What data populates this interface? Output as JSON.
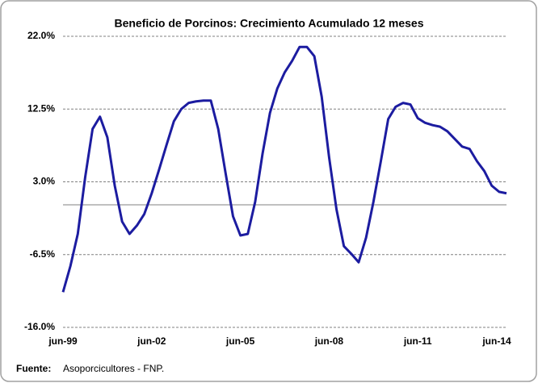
{
  "chart_data": {
    "type": "line",
    "title": "Beneficio de Porcinos: Crecimiento Acumulado 12 meses",
    "source_label": "Fuente:",
    "source": "Asoporcicultores - FNP.",
    "categories": [
      "jun-99",
      null,
      null,
      null,
      null,
      null,
      null,
      null,
      null,
      null,
      null,
      null,
      "jun-02",
      null,
      null,
      null,
      null,
      null,
      null,
      null,
      null,
      null,
      null,
      null,
      "jun-05",
      null,
      null,
      null,
      null,
      null,
      null,
      null,
      null,
      null,
      null,
      null,
      "jun-08",
      null,
      null,
      null,
      null,
      null,
      null,
      null,
      null,
      null,
      null,
      null,
      "jun-11",
      null,
      null,
      null,
      null,
      null,
      null,
      null,
      null,
      null,
      null,
      null,
      "jun-14"
    ],
    "values": [
      -11.4,
      -8,
      -3.8,
      3.6,
      9.9,
      11.5,
      8.8,
      2.5,
      -2.2,
      -3.8,
      -2.7,
      -1.2,
      1.5,
      4.6,
      7.8,
      10.9,
      12.5,
      13.3,
      13.5,
      13.6,
      13.6,
      9.9,
      4.1,
      -1.5,
      -4,
      -3.8,
      0.4,
      6.7,
      12,
      15.2,
      17.3,
      18.8,
      20.6,
      20.6,
      19.4,
      14.1,
      6.2,
      -0.6,
      -5.4,
      -6.4,
      -7.5,
      -4.3,
      0.4,
      5.7,
      11.2,
      12.8,
      13.3,
      13.1,
      11.3,
      10.7,
      10.4,
      10.2,
      9.6,
      8.6,
      7.6,
      7.3,
      5.7,
      4.4,
      2.5,
      1.7,
      1.5
    ],
    "color": "#1c1ca0",
    "ylim": [
      -16,
      22
    ],
    "yticks": [
      {
        "value": -16,
        "label": "-16.0%"
      },
      {
        "value": -6.5,
        "label": "-6.5%"
      },
      {
        "value": 3,
        "label": "3.0%"
      },
      {
        "value": 12.5,
        "label": "12.5%"
      },
      {
        "value": 22,
        "label": "22.0%"
      }
    ],
    "grid": true
  }
}
